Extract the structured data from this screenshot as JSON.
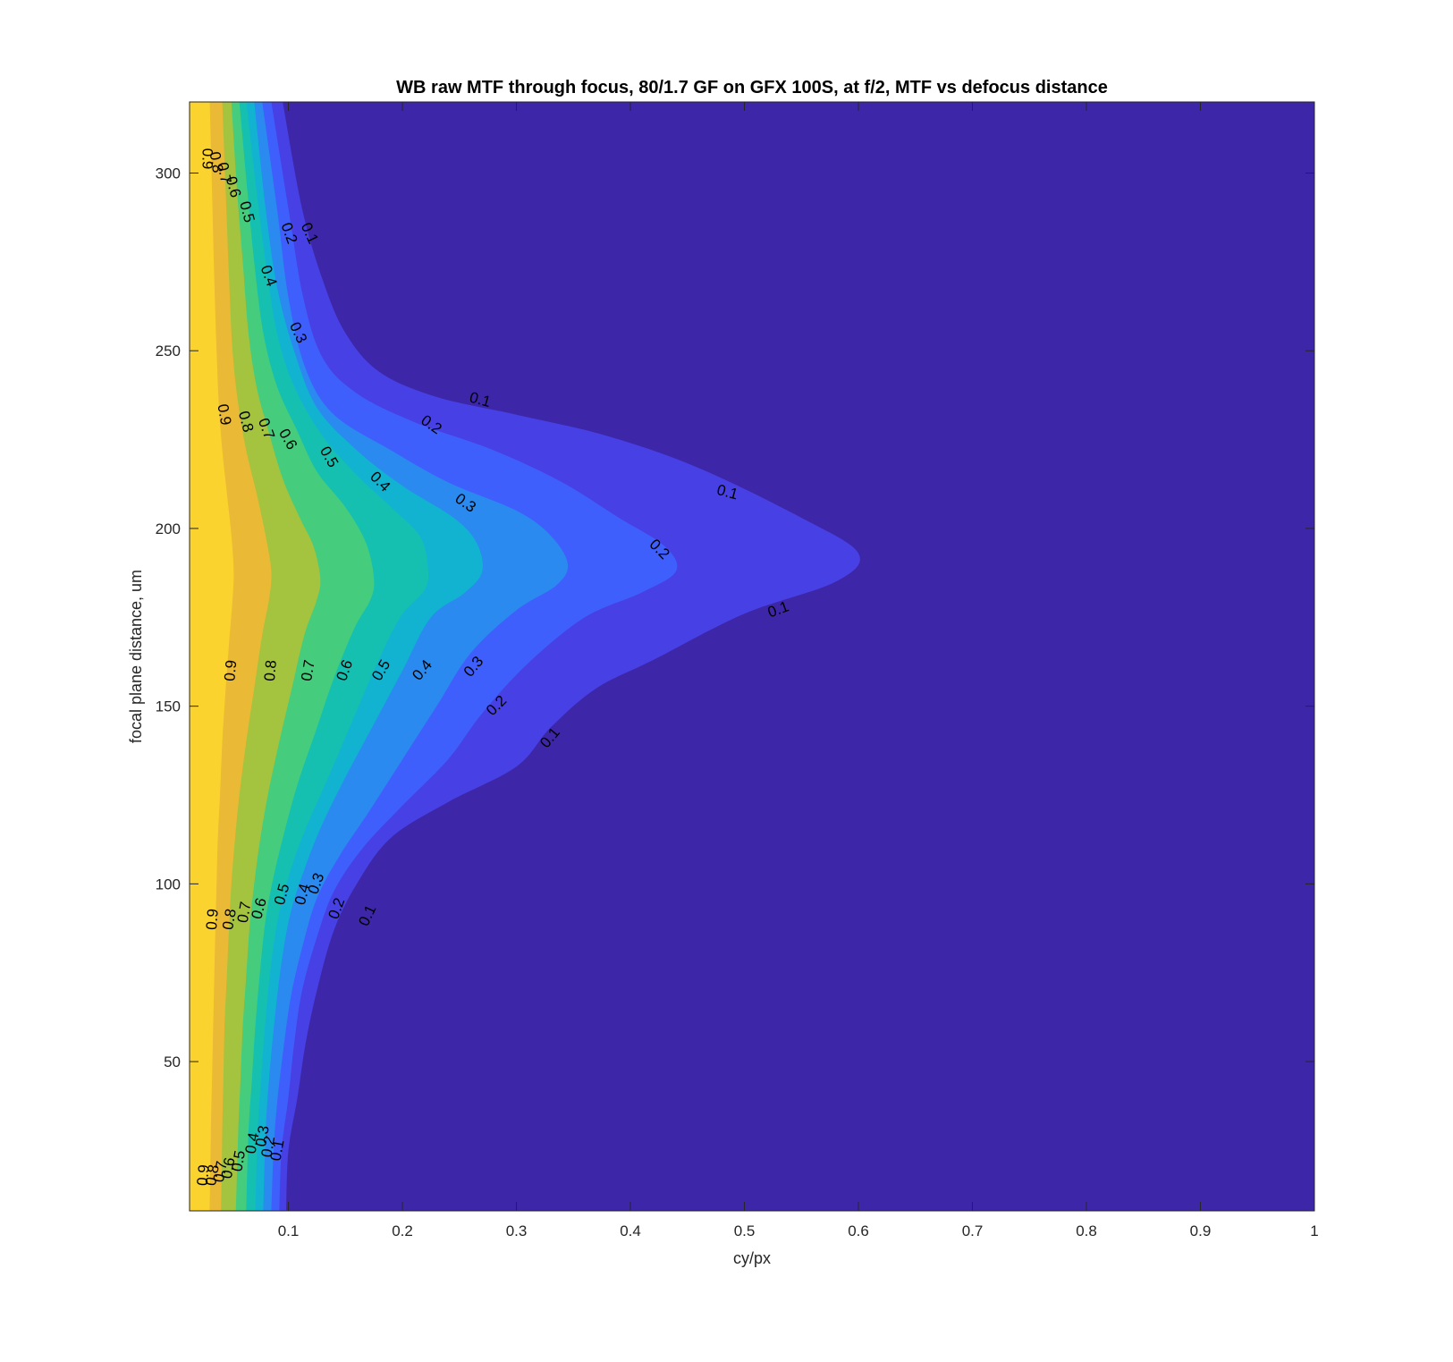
{
  "chart_data": {
    "type": "contour",
    "title": "WB raw MTF through focus, 80/1.7 GF on GFX 100S, at f/2, MTF vs defocus distance",
    "xlabel": "cy/px",
    "ylabel": "focal plane distance, um",
    "xlim": [
      0.0133,
      1.0
    ],
    "ylim": [
      8,
      320
    ],
    "xticks": [
      0.1,
      0.2,
      0.3,
      0.4,
      0.5,
      0.6,
      0.7,
      0.8,
      0.9,
      1
    ],
    "xtick_labels": [
      "0.1",
      "0.2",
      "0.3",
      "0.4",
      "0.5",
      "0.6",
      "0.7",
      "0.8",
      "0.9",
      "1"
    ],
    "yticks": [
      50,
      100,
      150,
      200,
      250,
      300
    ],
    "ytick_labels": [
      "50",
      "100",
      "150",
      "200",
      "250",
      "300"
    ],
    "background_color": "#3e26a8",
    "levels": [
      {
        "level": 0.1,
        "color": "#4740e5",
        "label": "0.1",
        "boundary": [
          [
            0.095,
            320
          ],
          [
            0.112,
            290
          ],
          [
            0.13,
            270
          ],
          [
            0.15,
            255
          ],
          [
            0.18,
            244
          ],
          [
            0.23,
            237
          ],
          [
            0.3,
            232
          ],
          [
            0.38,
            226
          ],
          [
            0.46,
            217
          ],
          [
            0.55,
            203
          ],
          [
            0.6,
            193
          ],
          [
            0.58,
            185
          ],
          [
            0.5,
            176
          ],
          [
            0.42,
            163
          ],
          [
            0.37,
            155
          ],
          [
            0.33,
            144
          ],
          [
            0.3,
            133
          ],
          [
            0.24,
            123
          ],
          [
            0.19,
            113
          ],
          [
            0.16,
            100
          ],
          [
            0.14,
            87
          ],
          [
            0.125,
            70
          ],
          [
            0.115,
            55
          ],
          [
            0.108,
            40
          ],
          [
            0.1,
            25
          ],
          [
            0.098,
            8
          ]
        ]
      },
      {
        "level": 0.2,
        "color": "#3f5ffd",
        "label": "0.2",
        "boundary": [
          [
            0.085,
            320
          ],
          [
            0.1,
            290
          ],
          [
            0.113,
            265
          ],
          [
            0.13,
            248
          ],
          [
            0.16,
            238
          ],
          [
            0.21,
            230
          ],
          [
            0.28,
            222
          ],
          [
            0.34,
            213
          ],
          [
            0.39,
            203
          ],
          [
            0.43,
            195
          ],
          [
            0.44,
            188
          ],
          [
            0.41,
            182
          ],
          [
            0.36,
            175
          ],
          [
            0.31,
            162
          ],
          [
            0.27,
            148
          ],
          [
            0.24,
            135
          ],
          [
            0.2,
            122
          ],
          [
            0.165,
            110
          ],
          [
            0.14,
            98
          ],
          [
            0.125,
            85
          ],
          [
            0.112,
            70
          ],
          [
            0.105,
            55
          ],
          [
            0.1,
            40
          ],
          [
            0.094,
            25
          ],
          [
            0.092,
            8
          ]
        ]
      },
      {
        "level": 0.3,
        "color": "#2b8af0",
        "label": "0.3",
        "boundary": [
          [
            0.077,
            320
          ],
          [
            0.09,
            290
          ],
          [
            0.1,
            265
          ],
          [
            0.115,
            245
          ],
          [
            0.14,
            232
          ],
          [
            0.19,
            222
          ],
          [
            0.24,
            213
          ],
          [
            0.3,
            205
          ],
          [
            0.33,
            198
          ],
          [
            0.345,
            190
          ],
          [
            0.335,
            184
          ],
          [
            0.3,
            177
          ],
          [
            0.26,
            165
          ],
          [
            0.23,
            150
          ],
          [
            0.2,
            135
          ],
          [
            0.17,
            120
          ],
          [
            0.145,
            108
          ],
          [
            0.125,
            96
          ],
          [
            0.112,
            82
          ],
          [
            0.102,
            68
          ],
          [
            0.095,
            52
          ],
          [
            0.09,
            38
          ],
          [
            0.087,
            25
          ],
          [
            0.085,
            8
          ]
        ]
      },
      {
        "level": 0.4,
        "color": "#12b3d0",
        "label": "0.4",
        "boundary": [
          [
            0.07,
            320
          ],
          [
            0.08,
            290
          ],
          [
            0.09,
            268
          ],
          [
            0.105,
            250
          ],
          [
            0.125,
            234
          ],
          [
            0.16,
            222
          ],
          [
            0.2,
            212
          ],
          [
            0.245,
            203
          ],
          [
            0.265,
            196
          ],
          [
            0.27,
            188
          ],
          [
            0.255,
            182
          ],
          [
            0.225,
            175
          ],
          [
            0.2,
            160
          ],
          [
            0.175,
            145
          ],
          [
            0.15,
            130
          ],
          [
            0.13,
            117
          ],
          [
            0.115,
            105
          ],
          [
            0.102,
            92
          ],
          [
            0.094,
            78
          ],
          [
            0.088,
            62
          ],
          [
            0.083,
            45
          ],
          [
            0.08,
            30
          ],
          [
            0.078,
            8
          ]
        ]
      },
      {
        "level": 0.5,
        "color": "#15c0b0",
        "label": "0.5",
        "boundary": [
          [
            0.063,
            320
          ],
          [
            0.072,
            295
          ],
          [
            0.08,
            275
          ],
          [
            0.09,
            255
          ],
          [
            0.105,
            240
          ],
          [
            0.13,
            226
          ],
          [
            0.16,
            215
          ],
          [
            0.19,
            206
          ],
          [
            0.215,
            198
          ],
          [
            0.222,
            190
          ],
          [
            0.22,
            183
          ],
          [
            0.198,
            175
          ],
          [
            0.175,
            160
          ],
          [
            0.155,
            145
          ],
          [
            0.135,
            130
          ],
          [
            0.117,
            117
          ],
          [
            0.103,
            105
          ],
          [
            0.092,
            92
          ],
          [
            0.085,
            78
          ],
          [
            0.08,
            62
          ],
          [
            0.076,
            45
          ],
          [
            0.073,
            30
          ],
          [
            0.071,
            8
          ]
        ]
      },
      {
        "level": 0.6,
        "color": "#45cc7d",
        "label": "0.6",
        "boundary": [
          [
            0.057,
            320
          ],
          [
            0.064,
            295
          ],
          [
            0.07,
            275
          ],
          [
            0.078,
            255
          ],
          [
            0.09,
            240
          ],
          [
            0.107,
            228
          ],
          [
            0.125,
            216
          ],
          [
            0.15,
            206
          ],
          [
            0.168,
            196
          ],
          [
            0.175,
            186
          ],
          [
            0.172,
            180
          ],
          [
            0.158,
            172
          ],
          [
            0.14,
            158
          ],
          [
            0.124,
            143
          ],
          [
            0.108,
            128
          ],
          [
            0.096,
            114
          ],
          [
            0.087,
            102
          ],
          [
            0.08,
            90
          ],
          [
            0.075,
            75
          ],
          [
            0.071,
            60
          ],
          [
            0.068,
            45
          ],
          [
            0.065,
            30
          ],
          [
            0.063,
            8
          ]
        ]
      },
      {
        "level": 0.7,
        "color": "#a4c33e",
        "label": "0.7",
        "boundary": [
          [
            0.05,
            320
          ],
          [
            0.055,
            295
          ],
          [
            0.06,
            275
          ],
          [
            0.065,
            255
          ],
          [
            0.072,
            240
          ],
          [
            0.082,
            228
          ],
          [
            0.095,
            214
          ],
          [
            0.11,
            203
          ],
          [
            0.122,
            195
          ],
          [
            0.128,
            186
          ],
          [
            0.125,
            180
          ],
          [
            0.114,
            170
          ],
          [
            0.103,
            155
          ],
          [
            0.092,
            140
          ],
          [
            0.082,
            125
          ],
          [
            0.075,
            112
          ],
          [
            0.07,
            100
          ],
          [
            0.066,
            88
          ],
          [
            0.063,
            74
          ],
          [
            0.06,
            60
          ],
          [
            0.058,
            45
          ],
          [
            0.056,
            30
          ],
          [
            0.054,
            8
          ]
        ]
      },
      {
        "level": 0.8,
        "color": "#eab935",
        "label": "0.8",
        "boundary": [
          [
            0.042,
            320
          ],
          [
            0.045,
            295
          ],
          [
            0.048,
            270
          ],
          [
            0.051,
            250
          ],
          [
            0.056,
            235
          ],
          [
            0.063,
            222
          ],
          [
            0.072,
            210
          ],
          [
            0.08,
            198
          ],
          [
            0.085,
            188
          ],
          [
            0.083,
            180
          ],
          [
            0.077,
            170
          ],
          [
            0.07,
            155
          ],
          [
            0.063,
            140
          ],
          [
            0.057,
            125
          ],
          [
            0.053,
            112
          ],
          [
            0.05,
            100
          ],
          [
            0.048,
            88
          ],
          [
            0.046,
            74
          ],
          [
            0.044,
            60
          ],
          [
            0.043,
            45
          ],
          [
            0.042,
            30
          ],
          [
            0.041,
            8
          ]
        ]
      },
      {
        "level": 0.9,
        "color": "#fbd32e",
        "label": "0.9",
        "boundary": [
          [
            0.031,
            320
          ],
          [
            0.033,
            295
          ],
          [
            0.035,
            270
          ],
          [
            0.037,
            250
          ],
          [
            0.039,
            235
          ],
          [
            0.042,
            222
          ],
          [
            0.046,
            210
          ],
          [
            0.05,
            198
          ],
          [
            0.052,
            188
          ],
          [
            0.051,
            180
          ],
          [
            0.048,
            168
          ],
          [
            0.045,
            155
          ],
          [
            0.042,
            140
          ],
          [
            0.04,
            125
          ],
          [
            0.038,
            112
          ],
          [
            0.037,
            100
          ],
          [
            0.036,
            88
          ],
          [
            0.035,
            74
          ],
          [
            0.034,
            60
          ],
          [
            0.033,
            45
          ],
          [
            0.032,
            30
          ],
          [
            0.031,
            8
          ]
        ]
      }
    ],
    "contour_labels": [
      {
        "text": "0.9",
        "x": 0.028,
        "y": 304,
        "rot": 90
      },
      {
        "text": "0.8",
        "x": 0.036,
        "y": 303,
        "rot": 80
      },
      {
        "text": "0.7",
        "x": 0.043,
        "y": 300,
        "rot": 80
      },
      {
        "text": "0.6",
        "x": 0.051,
        "y": 296,
        "rot": 75
      },
      {
        "text": "0.5",
        "x": 0.063,
        "y": 289,
        "rot": 75
      },
      {
        "text": "0.2",
        "x": 0.1,
        "y": 283,
        "rot": 70
      },
      {
        "text": "0.1",
        "x": 0.118,
        "y": 283,
        "rot": 65
      },
      {
        "text": "0.4",
        "x": 0.082,
        "y": 271,
        "rot": 70
      },
      {
        "text": "0.3",
        "x": 0.108,
        "y": 255,
        "rot": 65
      },
      {
        "text": "0.1",
        "x": 0.268,
        "y": 236,
        "rot": 15
      },
      {
        "text": "0.9",
        "x": 0.043,
        "y": 232,
        "rot": 80
      },
      {
        "text": "0.8",
        "x": 0.062,
        "y": 230,
        "rot": 75
      },
      {
        "text": "0.7",
        "x": 0.08,
        "y": 228,
        "rot": 70
      },
      {
        "text": "0.6",
        "x": 0.099,
        "y": 225,
        "rot": 60
      },
      {
        "text": "0.2",
        "x": 0.225,
        "y": 229,
        "rot": 35
      },
      {
        "text": "0.5",
        "x": 0.135,
        "y": 220,
        "rot": 60
      },
      {
        "text": "0.4",
        "x": 0.18,
        "y": 213,
        "rot": 45
      },
      {
        "text": "0.1",
        "x": 0.485,
        "y": 210,
        "rot": 15
      },
      {
        "text": "0.3",
        "x": 0.255,
        "y": 207,
        "rot": 35
      },
      {
        "text": "0.2",
        "x": 0.425,
        "y": 194,
        "rot": 45
      },
      {
        "text": "0.1",
        "x": 0.53,
        "y": 177,
        "rot": -20
      },
      {
        "text": "0.9",
        "x": 0.05,
        "y": 160,
        "rot": -85
      },
      {
        "text": "0.8",
        "x": 0.085,
        "y": 160,
        "rot": -85
      },
      {
        "text": "0.7",
        "x": 0.118,
        "y": 160,
        "rot": -80
      },
      {
        "text": "0.6",
        "x": 0.15,
        "y": 160,
        "rot": -70
      },
      {
        "text": "0.5",
        "x": 0.182,
        "y": 160,
        "rot": -60
      },
      {
        "text": "0.4",
        "x": 0.218,
        "y": 160,
        "rot": -50
      },
      {
        "text": "0.3",
        "x": 0.263,
        "y": 161,
        "rot": -50
      },
      {
        "text": "0.2",
        "x": 0.283,
        "y": 150,
        "rot": -45
      },
      {
        "text": "0.1",
        "x": 0.33,
        "y": 141,
        "rot": -50
      },
      {
        "text": "0.3",
        "x": 0.125,
        "y": 100,
        "rot": -70
      },
      {
        "text": "0.5",
        "x": 0.095,
        "y": 97,
        "rot": -75
      },
      {
        "text": "0.4",
        "x": 0.113,
        "y": 97,
        "rot": -75
      },
      {
        "text": "0.6",
        "x": 0.075,
        "y": 93,
        "rot": -75
      },
      {
        "text": "0.2",
        "x": 0.143,
        "y": 93,
        "rot": -70
      },
      {
        "text": "0.7",
        "x": 0.062,
        "y": 92,
        "rot": -80
      },
      {
        "text": "0.1",
        "x": 0.17,
        "y": 91,
        "rot": -65
      },
      {
        "text": "0.8",
        "x": 0.049,
        "y": 90,
        "rot": -80
      },
      {
        "text": "0.9",
        "x": 0.034,
        "y": 90,
        "rot": -85
      },
      {
        "text": "0.3",
        "x": 0.078,
        "y": 29,
        "rot": -80
      },
      {
        "text": "0.4",
        "x": 0.069,
        "y": 27,
        "rot": -80
      },
      {
        "text": "0.2",
        "x": 0.083,
        "y": 26,
        "rot": -80
      },
      {
        "text": "0.1",
        "x": 0.091,
        "y": 25,
        "rot": -80
      },
      {
        "text": "0.5",
        "x": 0.057,
        "y": 22,
        "rot": -80
      },
      {
        "text": "0.6",
        "x": 0.048,
        "y": 20,
        "rot": -80
      },
      {
        "text": "0.7",
        "x": 0.041,
        "y": 19,
        "rot": -80
      },
      {
        "text": "0.8",
        "x": 0.034,
        "y": 18,
        "rot": -80
      },
      {
        "text": "0.9",
        "x": 0.026,
        "y": 18,
        "rot": -85
      }
    ]
  }
}
